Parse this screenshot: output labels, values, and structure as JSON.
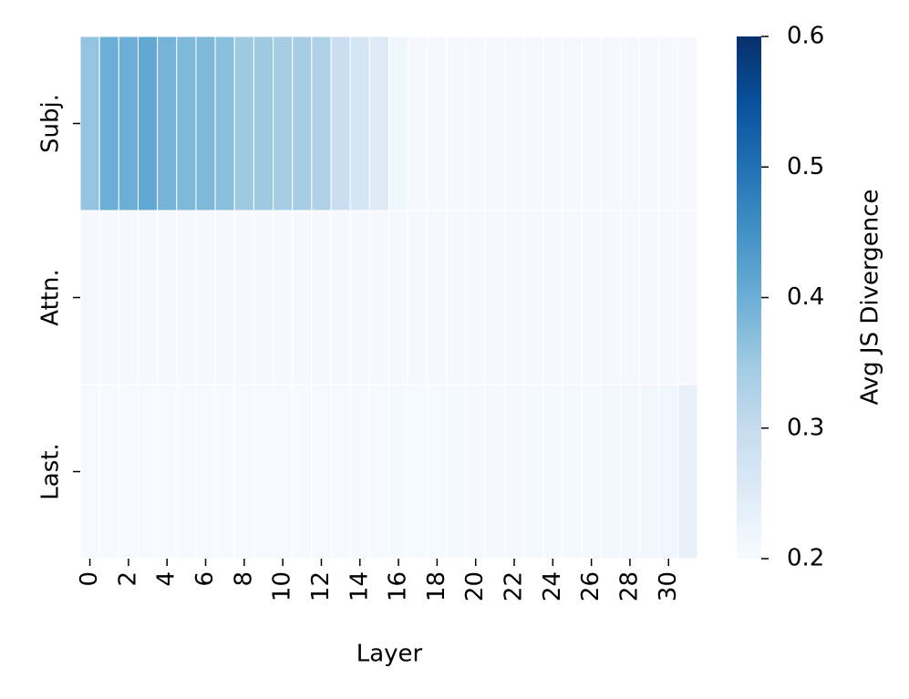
{
  "chart_data": {
    "type": "heatmap",
    "xlabel": "Layer",
    "categories": [
      0,
      null,
      2,
      null,
      4,
      null,
      6,
      null,
      8,
      null,
      10,
      null,
      12,
      null,
      14,
      null,
      16,
      null,
      18,
      null,
      20,
      null,
      22,
      null,
      24,
      null,
      26,
      null,
      28,
      null,
      30,
      null
    ],
    "y_categories": [
      "Subj.",
      "Attn.",
      "Last."
    ],
    "values": [
      [
        0.36,
        0.4,
        0.4,
        0.41,
        0.39,
        0.38,
        0.38,
        0.37,
        0.35,
        0.35,
        0.34,
        0.34,
        0.33,
        0.29,
        0.27,
        0.25,
        0.215,
        0.205,
        0.205,
        0.205,
        0.205,
        0.205,
        0.205,
        0.205,
        0.205,
        0.205,
        0.205,
        0.205,
        0.205,
        0.205,
        0.205,
        0.205
      ],
      [
        0.205,
        0.205,
        0.205,
        0.205,
        0.205,
        0.205,
        0.205,
        0.205,
        0.205,
        0.205,
        0.205,
        0.205,
        0.205,
        0.205,
        0.205,
        0.205,
        0.205,
        0.205,
        0.205,
        0.205,
        0.205,
        0.205,
        0.205,
        0.205,
        0.205,
        0.205,
        0.205,
        0.205,
        0.205,
        0.205,
        0.205,
        0.205
      ],
      [
        0.203,
        0.203,
        0.203,
        0.203,
        0.203,
        0.203,
        0.203,
        0.203,
        0.203,
        0.203,
        0.203,
        0.203,
        0.203,
        0.203,
        0.203,
        0.203,
        0.204,
        0.204,
        0.204,
        0.204,
        0.205,
        0.205,
        0.205,
        0.206,
        0.206,
        0.207,
        0.207,
        0.208,
        0.21,
        0.212,
        0.215,
        0.23
      ]
    ],
    "colormap": "Blues",
    "colorbar_label": "Avg JS Divergence",
    "clim": [
      0.2,
      0.6
    ],
    "cticks": [
      0.2,
      0.3,
      0.4,
      0.5,
      0.6
    ]
  }
}
